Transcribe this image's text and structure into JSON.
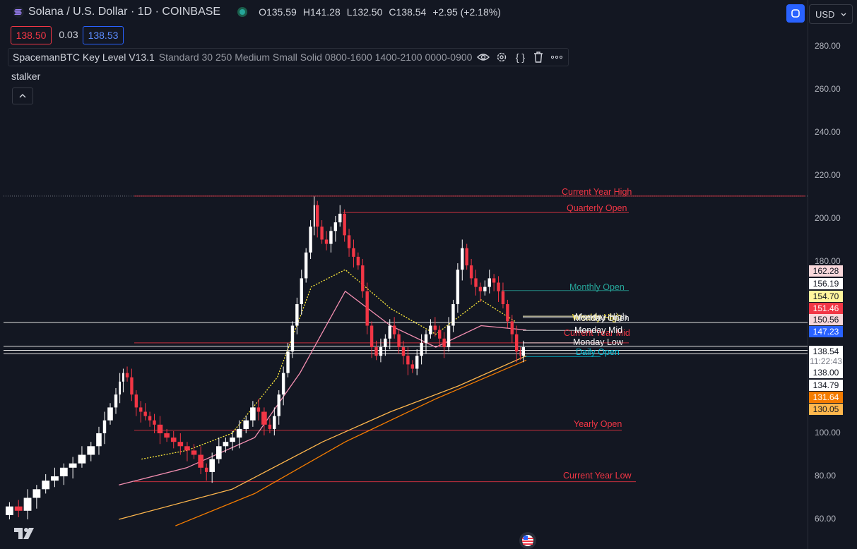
{
  "header": {
    "symbol": "Solana / U.S. Dollar · 1D · COINBASE",
    "ohlc": [
      {
        "k": "O",
        "v": "135.59"
      },
      {
        "k": "H",
        "v": "141.28"
      },
      {
        "k": "L",
        "v": "132.50"
      },
      {
        "k": "C",
        "v": "138.54"
      }
    ],
    "change": "+2.95 (+2.18%)",
    "sell_price": "138.50",
    "spread": "0.03",
    "buy_price": "138.53",
    "currency": "USD"
  },
  "indicator": {
    "name": "SpacemanBTC Key Level V13.1",
    "params": "Standard 30 250 Medium Small Solid 0800-1600 1400-2100 0000-0900"
  },
  "secondary_indicator": "stalker",
  "countdown": "11:22:43",
  "colors": {
    "background": "#131722",
    "up": "#ffffff",
    "down": "#f23645",
    "accent_blue": "#2962ff",
    "orange": "#f57c00",
    "yellow": "#ffeb3b",
    "pink": "#f48fb1"
  },
  "chart_data": {
    "type": "line",
    "y_axis_ticks": [
      "280.00",
      "260.00",
      "240.00",
      "220.00",
      "200.00",
      "180.00",
      "100.00",
      "80.00",
      "60.00"
    ],
    "ylim": [
      57,
      295
    ],
    "price_path": [
      [
        0,
        62
      ],
      [
        8,
        66
      ],
      [
        16,
        64
      ],
      [
        24,
        70
      ],
      [
        32,
        74
      ],
      [
        40,
        78
      ],
      [
        48,
        80
      ],
      [
        56,
        84
      ],
      [
        64,
        86
      ],
      [
        72,
        90
      ],
      [
        80,
        94
      ],
      [
        86,
        100
      ],
      [
        90,
        106
      ],
      [
        96,
        112
      ],
      [
        100,
        118
      ],
      [
        103,
        124
      ],
      [
        106,
        128
      ],
      [
        110,
        126
      ],
      [
        114,
        118
      ],
      [
        118,
        112
      ],
      [
        122,
        110
      ],
      [
        126,
        108
      ],
      [
        130,
        106
      ],
      [
        134,
        104
      ],
      [
        140,
        100
      ],
      [
        146,
        98
      ],
      [
        152,
        96
      ],
      [
        158,
        94
      ],
      [
        164,
        92
      ],
      [
        170,
        90
      ],
      [
        176,
        84
      ],
      [
        180,
        82
      ],
      [
        186,
        88
      ],
      [
        192,
        94
      ],
      [
        198,
        96
      ],
      [
        204,
        98
      ],
      [
        210,
        102
      ],
      [
        216,
        106
      ],
      [
        222,
        112
      ],
      [
        226,
        110
      ],
      [
        232,
        104
      ],
      [
        236,
        102
      ],
      [
        240,
        108
      ],
      [
        244,
        118
      ],
      [
        248,
        128
      ],
      [
        252,
        138
      ],
      [
        256,
        150
      ],
      [
        260,
        160
      ],
      [
        264,
        172
      ],
      [
        268,
        184
      ],
      [
        272,
        196
      ],
      [
        274,
        206
      ],
      [
        278,
        196
      ],
      [
        282,
        190
      ],
      [
        286,
        188
      ],
      [
        290,
        194
      ],
      [
        294,
        198
      ],
      [
        298,
        202
      ],
      [
        302,
        192
      ],
      [
        306,
        186
      ],
      [
        310,
        182
      ],
      [
        314,
        178
      ],
      [
        318,
        166
      ],
      [
        322,
        150
      ],
      [
        326,
        140
      ],
      [
        330,
        136
      ],
      [
        334,
        140
      ],
      [
        338,
        144
      ],
      [
        342,
        150
      ],
      [
        346,
        146
      ],
      [
        350,
        140
      ],
      [
        354,
        136
      ],
      [
        358,
        132
      ],
      [
        362,
        130
      ],
      [
        366,
        136
      ],
      [
        370,
        142
      ],
      [
        374,
        146
      ],
      [
        378,
        150
      ],
      [
        382,
        148
      ],
      [
        386,
        144
      ],
      [
        390,
        140
      ],
      [
        394,
        150
      ],
      [
        398,
        160
      ],
      [
        402,
        176
      ],
      [
        406,
        186
      ],
      [
        410,
        178
      ],
      [
        414,
        172
      ],
      [
        418,
        168
      ],
      [
        422,
        166
      ],
      [
        426,
        168
      ],
      [
        430,
        172
      ],
      [
        434,
        170
      ],
      [
        438,
        166
      ],
      [
        442,
        160
      ],
      [
        446,
        152
      ],
      [
        450,
        146
      ],
      [
        454,
        138
      ],
      [
        456,
        136
      ],
      [
        460,
        140
      ]
    ],
    "series": [
      {
        "color": "#ffeb3b",
        "values": [
          [
            120,
            88
          ],
          [
            160,
            92
          ],
          [
            200,
            100
          ],
          [
            240,
            126
          ],
          [
            270,
            168
          ],
          [
            300,
            176
          ],
          [
            340,
            158
          ],
          [
            380,
            146
          ],
          [
            420,
            162
          ],
          [
            450,
            152
          ]
        ]
      },
      {
        "color": "#f48fb1",
        "values": [
          [
            100,
            76
          ],
          [
            160,
            84
          ],
          [
            220,
            98
          ],
          [
            260,
            128
          ],
          [
            300,
            166
          ],
          [
            340,
            150
          ],
          [
            380,
            140
          ],
          [
            420,
            150
          ],
          [
            460,
            148
          ]
        ]
      },
      {
        "color": "#ffb74d",
        "values": [
          [
            100,
            60
          ],
          [
            200,
            74
          ],
          [
            280,
            96
          ],
          [
            340,
            110
          ],
          [
            400,
            122
          ],
          [
            460,
            136
          ]
        ]
      },
      {
        "color": "#f57c00",
        "values": [
          [
            150,
            57
          ],
          [
            220,
            72
          ],
          [
            300,
            96
          ],
          [
            380,
            116
          ],
          [
            460,
            134
          ]
        ]
      }
    ],
    "key_levels": [
      {
        "name": "Current Year High",
        "value": 210.2,
        "color": "#f23645"
      },
      {
        "name": "Quarterly Open",
        "value": 202.6,
        "color": "#f23645"
      },
      {
        "name": "Monthly Open",
        "value": 166.3,
        "color": "#26a69a"
      },
      {
        "name": "Weekly High",
        "value": 154.4,
        "color": "#ffeb3b"
      },
      {
        "name": "Monday Open",
        "value": 153.8,
        "color": "#f5f5f5"
      },
      {
        "name": "Monday High",
        "value": 154.4,
        "color": "#f5f5f5"
      },
      {
        "name": "Current Year Mid",
        "value": 142.0,
        "color": "#f23645"
      },
      {
        "name": "Monday Mid",
        "value": 147.8,
        "color": "#f5f5f5"
      },
      {
        "name": "Monday Low",
        "value": 142.0,
        "color": "#f5f5f5"
      },
      {
        "name": "Daily Open",
        "value": 135.6,
        "color": "#00bcd4"
      },
      {
        "name": "Yearly Open",
        "value": 101.4,
        "color": "#f23645"
      },
      {
        "name": "Current Year Low",
        "value": 77.5,
        "color": "#f23645"
      }
    ],
    "price_tags": [
      {
        "value": "162.28",
        "bg": "#f8d7da",
        "fg": "#131722"
      },
      {
        "value": "156.19",
        "bg": "#ffffff",
        "fg": "#131722"
      },
      {
        "value": "154.70",
        "bg": "#fff59d",
        "fg": "#131722"
      },
      {
        "value": "151.46",
        "bg": "#f23645",
        "fg": "#ffffff"
      },
      {
        "value": "150.56",
        "bg": "#f8d7da",
        "fg": "#131722"
      },
      {
        "value": "147.23",
        "bg": "#2962ff",
        "fg": "#ffffff"
      },
      {
        "value": "138.54",
        "bg": "#ffffff",
        "fg": "#131722"
      },
      {
        "value": "138.00",
        "bg": "#ffffff",
        "fg": "#131722"
      },
      {
        "value": "134.79",
        "bg": "#ffffff",
        "fg": "#131722"
      },
      {
        "value": "131.64",
        "bg": "#f57c00",
        "fg": "#ffffff"
      },
      {
        "value": "130.05",
        "bg": "#ffb74d",
        "fg": "#131722"
      }
    ]
  }
}
